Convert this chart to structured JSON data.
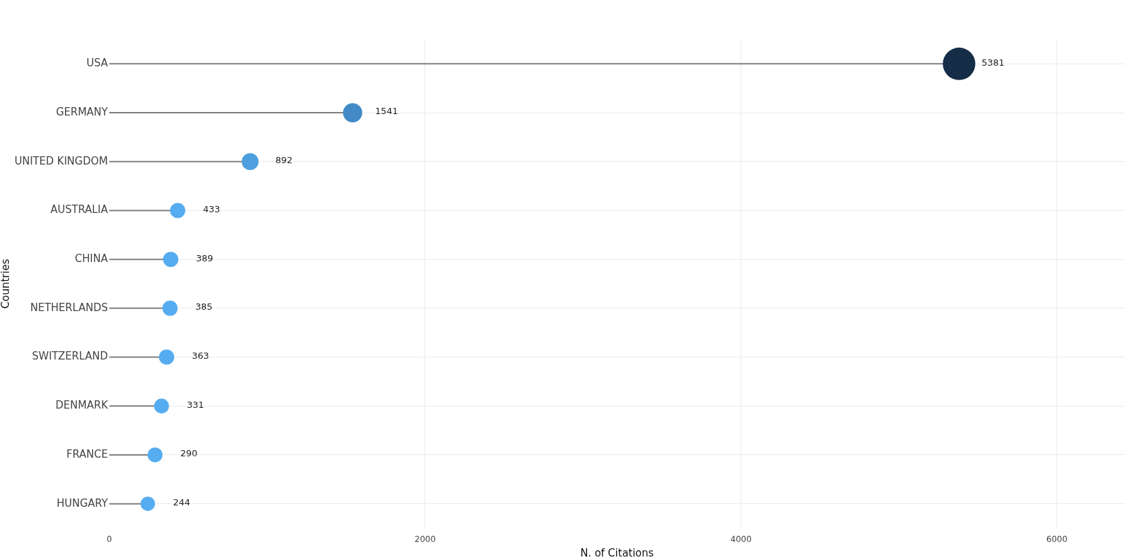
{
  "chart_data": {
    "type": "lollipop",
    "orientation": "horizontal",
    "xlabel": "N. of Citations",
    "ylabel": "Countries",
    "categories": [
      "USA",
      "GERMANY",
      "UNITED KINGDOM",
      "AUSTRALIA",
      "CHINA",
      "NETHERLANDS",
      "SWITZERLAND",
      "DENMARK",
      "FRANCE",
      "HUNGARY"
    ],
    "values": [
      5381,
      1541,
      892,
      433,
      389,
      385,
      363,
      331,
      290,
      244
    ],
    "colors": [
      "#162d47",
      "#418ac7",
      "#4e9fde",
      "#56acf0",
      "#56acf0",
      "#56acf0",
      "#56acf0",
      "#56acf0",
      "#56acf0",
      "#56acf0"
    ],
    "sizes": [
      1,
      0.35,
      0.27,
      0.22,
      0.22,
      0.22,
      0.22,
      0.21,
      0.21,
      0.2
    ],
    "xlim": [
      0,
      6430
    ],
    "xticks": [
      0,
      2000,
      4000,
      6000
    ],
    "grid": true,
    "marker": "circle",
    "data_labels": true
  }
}
